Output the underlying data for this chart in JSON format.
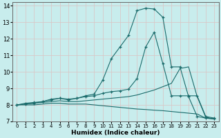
{
  "xlabel": "Humidex (Indice chaleur)",
  "bg_color": "#c8eded",
  "grid_color": "#d8c8c8",
  "line_color": "#1a6b6b",
  "xlim": [
    -0.5,
    23.5
  ],
  "ylim": [
    7,
    14.2
  ],
  "xticks": [
    0,
    1,
    2,
    3,
    4,
    5,
    6,
    7,
    8,
    9,
    10,
    11,
    12,
    13,
    14,
    15,
    16,
    17,
    18,
    19,
    20,
    21,
    22,
    23
  ],
  "yticks": [
    7,
    8,
    9,
    10,
    11,
    12,
    13,
    14
  ],
  "series1_x": [
    0,
    1,
    2,
    3,
    4,
    5,
    6,
    7,
    8,
    9,
    10,
    11,
    12,
    13,
    14,
    15,
    16,
    17,
    18,
    19,
    20,
    21,
    22,
    23
  ],
  "series1_y": [
    8.0,
    8.1,
    8.15,
    8.2,
    8.35,
    8.4,
    8.3,
    8.4,
    8.55,
    8.65,
    9.5,
    10.8,
    11.5,
    12.2,
    13.7,
    13.85,
    13.8,
    13.3,
    10.3,
    10.3,
    8.5,
    7.3,
    7.2,
    7.15
  ],
  "series2_x": [
    0,
    1,
    2,
    3,
    4,
    5,
    6,
    7,
    8,
    9,
    10,
    11,
    12,
    13,
    14,
    15,
    16,
    17,
    18,
    19,
    20,
    21,
    22,
    23
  ],
  "series2_y": [
    8.0,
    8.05,
    8.1,
    8.2,
    8.3,
    8.4,
    8.35,
    8.4,
    8.5,
    8.55,
    8.7,
    8.8,
    8.85,
    8.95,
    9.6,
    11.5,
    12.4,
    10.5,
    8.55,
    8.55,
    8.55,
    8.55,
    7.3,
    7.2
  ],
  "series3_x": [
    0,
    1,
    2,
    3,
    4,
    5,
    6,
    7,
    8,
    9,
    10,
    11,
    12,
    13,
    14,
    15,
    16,
    17,
    18,
    19,
    20,
    21,
    22,
    23
  ],
  "series3_y": [
    8.0,
    8.05,
    8.1,
    8.15,
    8.2,
    8.25,
    8.2,
    8.2,
    8.25,
    8.3,
    8.35,
    8.4,
    8.45,
    8.5,
    8.6,
    8.75,
    8.9,
    9.1,
    9.3,
    10.2,
    10.3,
    8.5,
    7.25,
    7.15
  ],
  "series4_x": [
    0,
    1,
    2,
    3,
    4,
    5,
    6,
    7,
    8,
    9,
    10,
    11,
    12,
    13,
    14,
    15,
    16,
    17,
    18,
    19,
    20,
    21,
    22,
    23
  ],
  "series4_y": [
    8.0,
    8.0,
    8.0,
    8.05,
    8.1,
    8.1,
    8.05,
    8.05,
    8.05,
    8.0,
    7.95,
    7.9,
    7.85,
    7.8,
    7.75,
    7.72,
    7.68,
    7.65,
    7.6,
    7.55,
    7.5,
    7.45,
    7.2,
    7.15
  ]
}
